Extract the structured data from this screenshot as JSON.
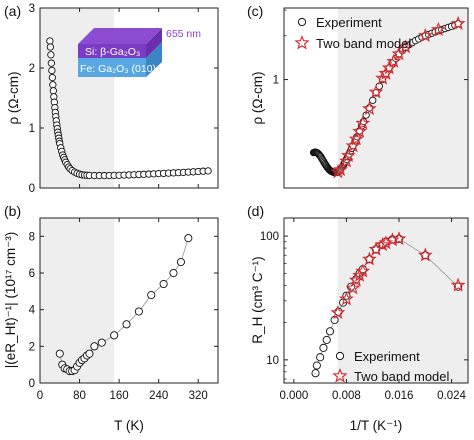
{
  "colors": {
    "shade": "#eeeeee",
    "star": "#d9262c",
    "inset_top": "#8b4bd3",
    "inset_top_side": "#6a2fae",
    "inset_top_front": "#7a3cc4",
    "inset_sub": "#57a8e0",
    "inset_sub_side": "#3a86c4",
    "inset_thick_label": "#8b3fd6"
  },
  "inset": {
    "thickness": "655 nm",
    "film": "Si: β-Ga₂O₃",
    "substrate": "Fe: Ga₂O₃ (010)"
  },
  "chart_data": [
    {
      "panel": "(a)",
      "type": "scatter",
      "ylabel": "ρ (Ω-cm)",
      "xlim": [
        0,
        360
      ],
      "ylim": [
        0,
        3
      ],
      "xticks": [
        0,
        80,
        160,
        240,
        320
      ],
      "yticks": [
        0,
        1,
        2,
        3
      ],
      "shade_x": [
        0,
        150
      ],
      "series": [
        {
          "marker": "open-circle",
          "x": [
            20,
            21,
            22,
            23,
            24,
            25,
            26,
            27,
            28,
            29,
            30,
            31,
            32,
            33,
            34,
            35,
            36,
            37,
            38,
            39,
            40,
            42,
            44,
            46,
            48,
            50,
            52,
            55,
            58,
            61,
            65,
            70,
            75,
            80,
            85,
            90,
            95,
            100,
            110,
            120,
            130,
            140,
            150,
            160,
            170,
            180,
            190,
            200,
            210,
            220,
            230,
            240,
            250,
            260,
            270,
            280,
            290,
            300,
            310,
            320,
            330,
            340
          ],
          "y": [
            2.45,
            2.35,
            2.22,
            2.08,
            1.96,
            1.84,
            1.72,
            1.62,
            1.52,
            1.43,
            1.34,
            1.26,
            1.19,
            1.12,
            1.05,
            0.99,
            0.93,
            0.88,
            0.83,
            0.78,
            0.74,
            0.67,
            0.61,
            0.55,
            0.51,
            0.47,
            0.43,
            0.39,
            0.35,
            0.32,
            0.29,
            0.265,
            0.245,
            0.23,
            0.22,
            0.215,
            0.212,
            0.21,
            0.208,
            0.207,
            0.207,
            0.208,
            0.21,
            0.212,
            0.215,
            0.218,
            0.221,
            0.224,
            0.228,
            0.232,
            0.236,
            0.24,
            0.244,
            0.248,
            0.252,
            0.256,
            0.26,
            0.265,
            0.27,
            0.275,
            0.28,
            0.285
          ]
        }
      ]
    },
    {
      "panel": "(b)",
      "type": "scatter",
      "xlabel": "T (K)",
      "ylabel": "|(eR_Ht)⁻¹| (10¹⁷ cm⁻³)",
      "xlim": [
        0,
        360
      ],
      "ylim": [
        0,
        9
      ],
      "xticks": [
        0,
        80,
        160,
        240,
        320
      ],
      "yticks": [
        0,
        2,
        4,
        6,
        8
      ],
      "shade_x": [
        0,
        150
      ],
      "series": [
        {
          "marker": "open-circle-connected",
          "x": [
            40,
            45,
            50,
            55,
            60,
            65,
            70,
            75,
            80,
            85,
            90,
            95,
            100,
            110,
            125,
            150,
            175,
            200,
            225,
            250,
            270,
            285,
            300
          ],
          "y": [
            1.6,
            1.0,
            0.8,
            0.75,
            0.65,
            0.65,
            0.7,
            0.9,
            1.1,
            1.25,
            1.35,
            1.5,
            1.6,
            2.0,
            2.2,
            2.6,
            3.2,
            3.9,
            4.8,
            5.4,
            6.0,
            6.6,
            7.9
          ]
        }
      ]
    },
    {
      "panel": "(c)",
      "type": "scatter",
      "ylabel": "ρ (Ω-cm)",
      "yscale": "log",
      "ylim": [
        0.18,
        3.1
      ],
      "yticks": [
        1
      ],
      "shade_x": [
        0.00667,
        0.0265
      ],
      "legend": [
        "Experiment",
        "Two band model"
      ],
      "series": [
        {
          "name": "Experiment",
          "marker": "open-circle",
          "x": [
            0.003,
            0.0031,
            0.0032,
            0.0033,
            0.0034,
            0.0035,
            0.0036,
            0.0037,
            0.0038,
            0.0039,
            0.004,
            0.0041,
            0.0042,
            0.0043,
            0.0044,
            0.0045,
            0.0046,
            0.0047,
            0.0048,
            0.0049,
            0.005,
            0.0051,
            0.0052,
            0.0053,
            0.0054,
            0.0055,
            0.0056,
            0.0057,
            0.0058,
            0.0059,
            0.006,
            0.0061,
            0.0062,
            0.0063,
            0.0064,
            0.0065,
            0.0066,
            0.0067,
            0.0068,
            0.0069,
            0.007,
            0.0071,
            0.0072,
            0.0073,
            0.0074,
            0.0075,
            0.0076,
            0.0077,
            0.0078,
            0.008,
            0.0082,
            0.0084,
            0.0086,
            0.0088,
            0.009,
            0.0093,
            0.0096,
            0.01,
            0.0103,
            0.0106,
            0.011,
            0.0115,
            0.012,
            0.0125,
            0.013,
            0.0135,
            0.014,
            0.0145,
            0.015,
            0.0155,
            0.016,
            0.0165,
            0.017,
            0.0175,
            0.018,
            0.0185,
            0.019,
            0.0195,
            0.02,
            0.0205,
            0.021,
            0.0215,
            0.022,
            0.0225,
            0.023,
            0.0235,
            0.024,
            0.0245,
            0.025
          ],
          "y": [
            0.315,
            0.316,
            0.317,
            0.317,
            0.316,
            0.315,
            0.313,
            0.31,
            0.307,
            0.303,
            0.299,
            0.295,
            0.29,
            0.285,
            0.28,
            0.275,
            0.27,
            0.265,
            0.261,
            0.257,
            0.253,
            0.249,
            0.246,
            0.243,
            0.24,
            0.238,
            0.236,
            0.234,
            0.233,
            0.232,
            0.231,
            0.23,
            0.23,
            0.23,
            0.23,
            0.23,
            0.231,
            0.232,
            0.234,
            0.236,
            0.239,
            0.242,
            0.245,
            0.249,
            0.253,
            0.257,
            0.262,
            0.267,
            0.272,
            0.283,
            0.295,
            0.308,
            0.322,
            0.337,
            0.352,
            0.378,
            0.405,
            0.445,
            0.48,
            0.515,
            0.57,
            0.64,
            0.72,
            0.81,
            0.9,
            1.0,
            1.1,
            1.2,
            1.3,
            1.4,
            1.5,
            1.58,
            1.66,
            1.73,
            1.79,
            1.85,
            1.9,
            1.95,
            2.0,
            2.04,
            2.08,
            2.12,
            2.16,
            2.2,
            2.24,
            2.28,
            2.32,
            2.36,
            2.42
          ]
        },
        {
          "name": "Two band model",
          "marker": "open-star",
          "x": [
            0.0067,
            0.0071,
            0.008,
            0.0083,
            0.009,
            0.0095,
            0.01,
            0.0105,
            0.0115,
            0.0125,
            0.0135,
            0.014,
            0.0145,
            0.0152,
            0.016,
            0.017,
            0.02,
            0.022,
            0.025
          ],
          "y": [
            0.232,
            0.24,
            0.275,
            0.3,
            0.35,
            0.39,
            0.44,
            0.5,
            0.63,
            0.82,
            1.02,
            1.1,
            1.2,
            1.33,
            1.5,
            1.67,
            2.0,
            2.2,
            2.42
          ]
        }
      ]
    },
    {
      "panel": "(d)",
      "type": "scatter",
      "xlabel": "1/T (K⁻¹)",
      "ylabel": "R_H (cm³ C⁻¹)",
      "yscale": "log",
      "xlim": [
        -0.0015,
        0.0265
      ],
      "ylim": [
        6.5,
        140
      ],
      "xticks": [
        0.0,
        0.008,
        0.016,
        0.024
      ],
      "xtick_labels": [
        "0.000",
        "0.008",
        "0.016",
        "0.024"
      ],
      "yticks": [
        10,
        100
      ],
      "shade_x": [
        0.00667,
        0.0265
      ],
      "legend": [
        "Experiment",
        "Two band model"
      ],
      "series": [
        {
          "name": "Experiment",
          "marker": "open-circle-connected",
          "x": [
            0.0033,
            0.0035,
            0.004,
            0.0045,
            0.005,
            0.0055,
            0.0062,
            0.0068,
            0.0075,
            0.008,
            0.0087,
            0.0095,
            0.01,
            0.0105,
            0.0115,
            0.0125,
            0.0135,
            0.014,
            0.015,
            0.016,
            0.02,
            0.025
          ],
          "y": [
            7.8,
            9.0,
            10.5,
            12.5,
            14.5,
            17,
            21,
            24.5,
            29,
            33,
            39,
            45,
            50,
            54,
            65,
            78,
            85,
            90,
            94,
            95,
            70,
            39
          ]
        },
        {
          "name": "Two band model",
          "marker": "open-star",
          "x": [
            0.0067,
            0.008,
            0.009,
            0.0095,
            0.01,
            0.0105,
            0.0115,
            0.0125,
            0.0135,
            0.014,
            0.015,
            0.016,
            0.02,
            0.025
          ],
          "y": [
            24,
            31,
            38,
            44,
            48,
            52,
            65,
            78,
            85,
            88,
            93,
            95,
            70,
            40
          ]
        }
      ]
    }
  ]
}
